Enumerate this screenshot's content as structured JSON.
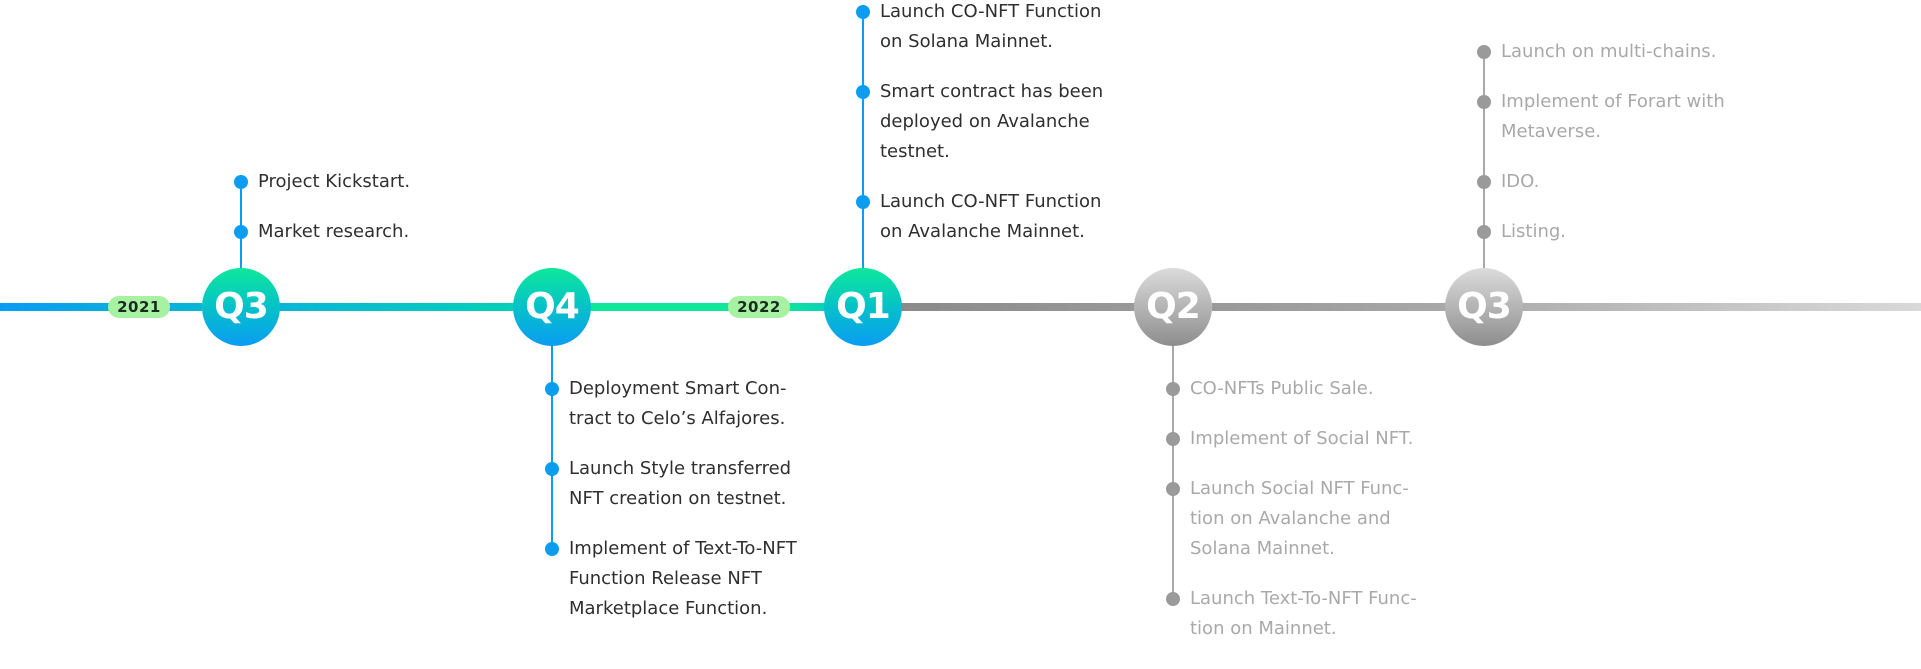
{
  "colors": {
    "active_accent": "#0c9df0",
    "active_gradient_top": "#0ee89a",
    "future_gray": "#9a9a9a",
    "year_pill": "#a6f2a2"
  },
  "years": [
    {
      "label": "2021"
    },
    {
      "label": "2022"
    }
  ],
  "quarters": [
    {
      "label": "Q3",
      "status": "done",
      "items": [
        "Project Kickstart.",
        "Market research."
      ]
    },
    {
      "label": "Q4",
      "status": "done",
      "items": [
        "Deployment Smart Con-\ntract to Celo’s Alfajores.",
        "Launch Style transferred\nNFT creation on testnet.",
        "Implement of Text-To-NFT\nFunction Release NFT\nMarketplace Function."
      ]
    },
    {
      "label": "Q1",
      "status": "done",
      "items": [
        "Launch CO-NFT Function\non Solana Mainnet.",
        "Smart contract has been\ndeployed on Avalanche\ntestnet.",
        "Launch CO-NFT Function\non Avalanche Mainnet."
      ]
    },
    {
      "label": "Q2",
      "status": "upcoming",
      "items": [
        "CO-NFTs Public Sale.",
        "Implement of Social NFT.",
        "Launch Social NFT Func-\ntion on Avalanche and\nSolana Mainnet.",
        "Launch Text-To-NFT Func-\ntion on Mainnet."
      ]
    },
    {
      "label": "Q3",
      "status": "upcoming",
      "items": [
        "Launch on multi-chains.",
        "Implement of Forart with\nMetaverse.",
        "IDO.",
        "Listing."
      ]
    }
  ]
}
